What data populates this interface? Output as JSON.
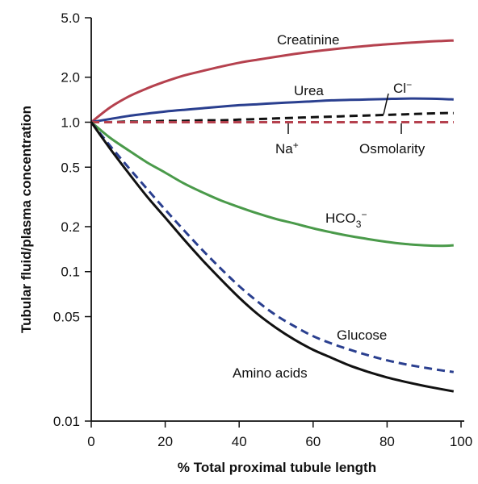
{
  "chart_data": {
    "type": "line",
    "xlabel": "% Total proximal tubule length",
    "ylabel": "Tubular fluid/plasma concentration",
    "xlim": [
      0,
      100
    ],
    "ylim": [
      0.01,
      5.0
    ],
    "yscale": "log",
    "grid": false,
    "x_ticks": [
      0,
      20,
      40,
      60,
      80,
      100
    ],
    "x_tick_labels": [
      "0",
      "20",
      "40",
      "60",
      "80",
      "100"
    ],
    "y_ticks": [
      5.0,
      2.0,
      1.0,
      0.5,
      0.2,
      0.1,
      0.05,
      0.01
    ],
    "y_tick_labels": [
      "5.0",
      "2.0",
      "1.0",
      "0.5",
      "0.2",
      "0.1",
      "0.05",
      "0.01"
    ],
    "x": [
      0,
      5,
      10,
      15,
      20,
      25,
      30,
      35,
      40,
      45,
      50,
      55,
      60,
      65,
      70,
      75,
      80,
      85,
      90,
      95,
      98
    ],
    "series": [
      {
        "name": "Creatinine",
        "color": "#b5414e",
        "dash": "solid",
        "values": [
          1.0,
          1.25,
          1.48,
          1.68,
          1.87,
          2.05,
          2.2,
          2.35,
          2.5,
          2.62,
          2.74,
          2.86,
          2.97,
          3.07,
          3.16,
          3.25,
          3.32,
          3.39,
          3.45,
          3.5,
          3.52
        ]
      },
      {
        "name": "Urea",
        "color": "#2a3f8f",
        "dash": "solid",
        "values": [
          1.0,
          1.05,
          1.1,
          1.14,
          1.18,
          1.21,
          1.24,
          1.27,
          1.3,
          1.32,
          1.34,
          1.36,
          1.38,
          1.4,
          1.41,
          1.42,
          1.43,
          1.44,
          1.44,
          1.43,
          1.42
        ]
      },
      {
        "name": "Cl",
        "color": "#111111",
        "dash": "dashed",
        "values": [
          1.0,
          1.0,
          1.01,
          1.01,
          1.02,
          1.02,
          1.03,
          1.03,
          1.04,
          1.05,
          1.06,
          1.07,
          1.08,
          1.09,
          1.1,
          1.11,
          1.12,
          1.13,
          1.14,
          1.15,
          1.15
        ]
      },
      {
        "name": "Na+",
        "color": "#b5414e",
        "dash": "dashed",
        "values": [
          1.0,
          1.0,
          1.0,
          1.0,
          1.0,
          1.0,
          1.0,
          1.0,
          1.0,
          1.0,
          1.0,
          1.0,
          1.0,
          1.0,
          1.0,
          1.0,
          1.0,
          1.0,
          1.0,
          1.0,
          1.0
        ]
      },
      {
        "name": "Osmolarity",
        "color": "#b5414e",
        "dash": "dashed",
        "values": [
          1.0,
          1.0,
          1.0,
          1.0,
          1.0,
          1.0,
          1.0,
          1.0,
          1.0,
          1.0,
          1.0,
          1.0,
          1.0,
          1.0,
          1.0,
          1.0,
          1.0,
          1.0,
          1.0,
          1.0,
          1.0
        ]
      },
      {
        "name": "HCO3-",
        "color": "#4a9a4a",
        "dash": "solid",
        "values": [
          1.0,
          0.79,
          0.65,
          0.54,
          0.46,
          0.39,
          0.34,
          0.3,
          0.27,
          0.245,
          0.225,
          0.21,
          0.195,
          0.183,
          0.173,
          0.165,
          0.158,
          0.153,
          0.15,
          0.149,
          0.15
        ]
      },
      {
        "name": "Glucose",
        "color": "#2a3f8f",
        "dash": "dashed",
        "values": [
          1.0,
          0.7,
          0.5,
          0.36,
          0.26,
          0.19,
          0.14,
          0.105,
          0.08,
          0.063,
          0.051,
          0.043,
          0.037,
          0.033,
          0.03,
          0.0275,
          0.0255,
          0.024,
          0.0228,
          0.0218,
          0.0213
        ]
      },
      {
        "name": "Amino acids",
        "color": "#111111",
        "dash": "solid",
        "values": [
          1.0,
          0.67,
          0.46,
          0.32,
          0.23,
          0.165,
          0.12,
          0.089,
          0.067,
          0.052,
          0.042,
          0.035,
          0.03,
          0.0265,
          0.0235,
          0.0213,
          0.0196,
          0.0183,
          0.0172,
          0.0163,
          0.0158
        ]
      }
    ],
    "annotations": {
      "creatinine": "Creatinine",
      "urea": "Urea",
      "cl": "Cl",
      "cl_sup": "−",
      "na": "Na",
      "na_sup": "+",
      "osmolarity": "Osmolarity",
      "hco3": "HCO",
      "hco3_sub": "3",
      "hco3_sup": "−",
      "glucose": "Glucose",
      "amino_acids": "Amino acids"
    }
  }
}
